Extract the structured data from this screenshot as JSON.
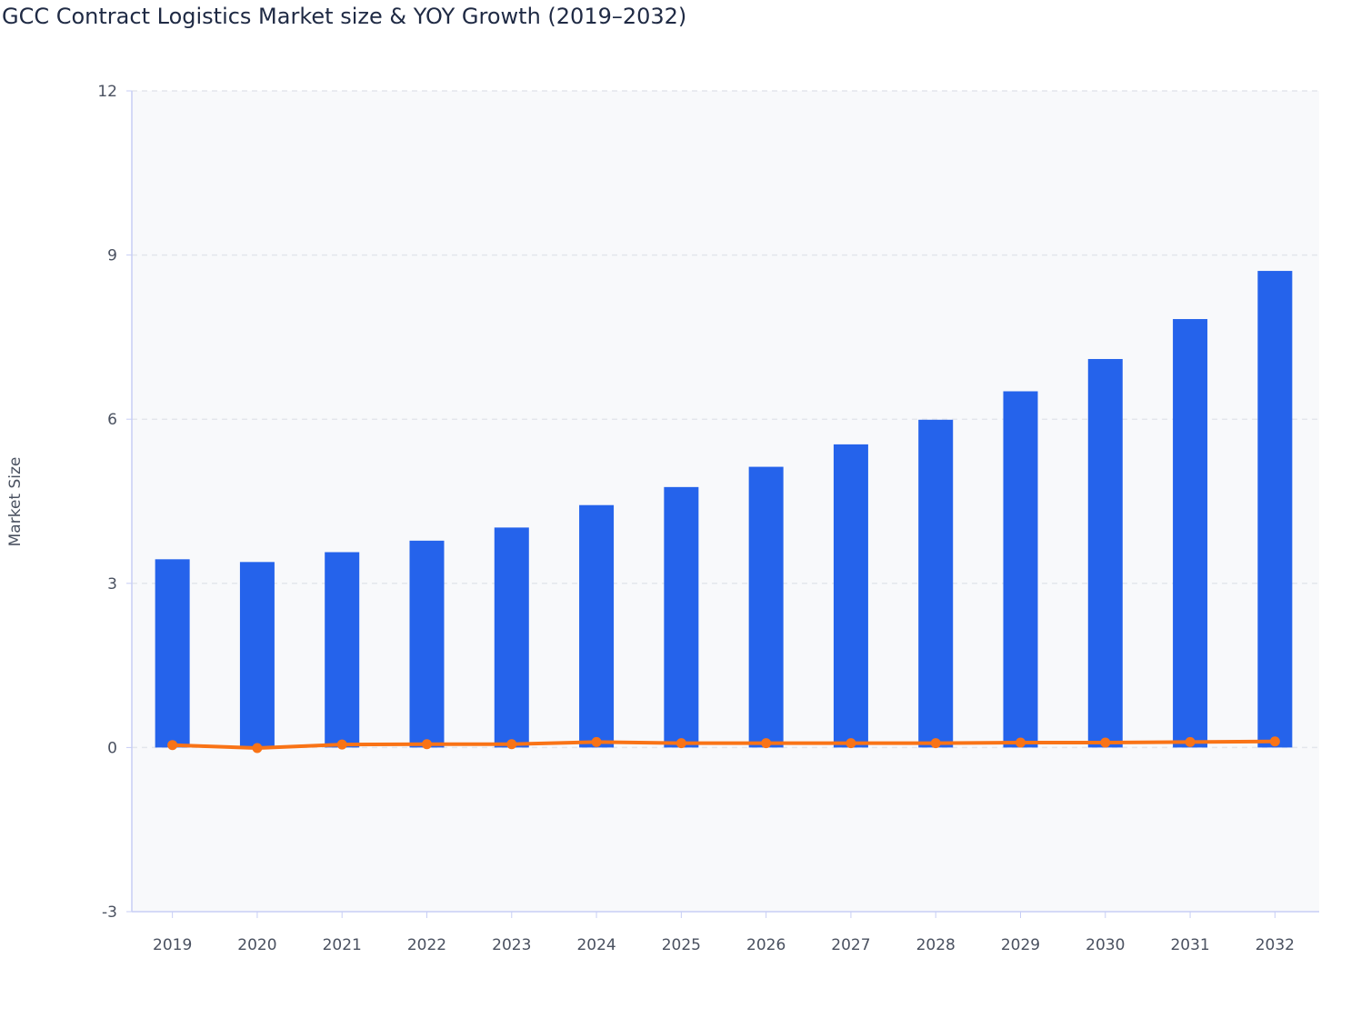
{
  "chart_data": {
    "type": "bar+line",
    "title": "GCC Contract Logistics Market size & YOY Growth (2019–2032)",
    "xlabel": "",
    "ylabel": "Market Size",
    "ylim": [
      -3,
      12
    ],
    "yticks": [
      -3,
      0,
      3,
      6,
      9,
      12
    ],
    "grid": true,
    "categories": [
      "2019",
      "2020",
      "2021",
      "2022",
      "2023",
      "2024",
      "2025",
      "2026",
      "2027",
      "2028",
      "2029",
      "2030",
      "2031",
      "2032"
    ],
    "series": [
      {
        "type": "bar",
        "color": "#2563eb",
        "values": [
          3.44,
          3.39,
          3.57,
          3.78,
          4.02,
          4.43,
          4.76,
          5.13,
          5.54,
          5.99,
          6.51,
          7.1,
          7.83,
          8.71
        ]
      },
      {
        "type": "line",
        "color": "#f97316",
        "values": [
          0.045,
          -0.01,
          0.055,
          0.06,
          0.06,
          0.1,
          0.08,
          0.08,
          0.08,
          0.08,
          0.09,
          0.09,
          0.1,
          0.11
        ]
      }
    ]
  }
}
